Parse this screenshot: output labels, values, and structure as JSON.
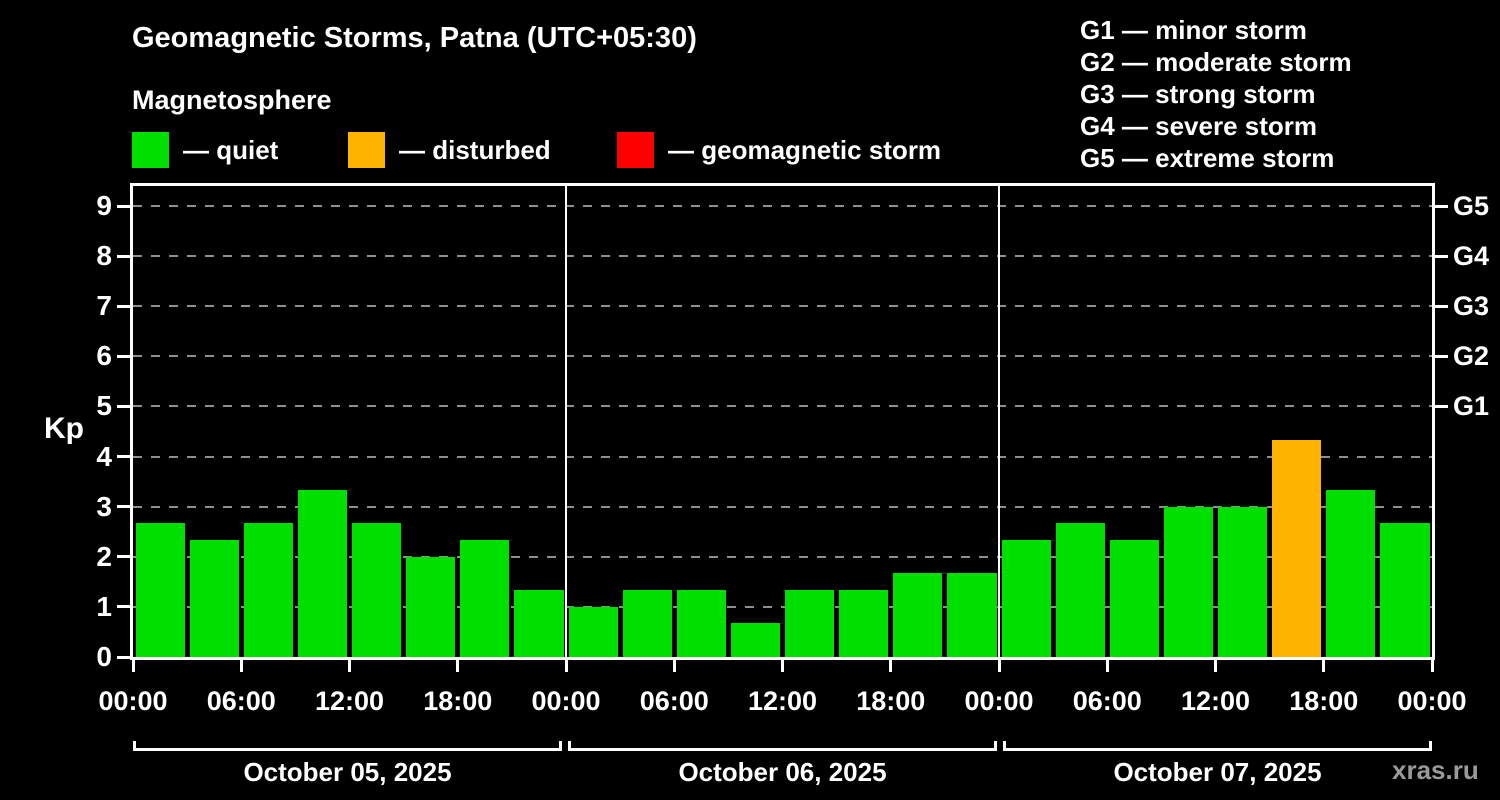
{
  "title": "Geomagnetic Storms, Patna (UTC+05:30)",
  "subtitle": "Magnetosphere",
  "watermark": "xras.ru",
  "status_legend": [
    {
      "name": "quiet",
      "label": "— quiet",
      "color": "#00e000"
    },
    {
      "name": "disturbed",
      "label": "— disturbed",
      "color": "#ffb200"
    },
    {
      "name": "storm",
      "label": "— geomagnetic storm",
      "color": "#ff0000"
    }
  ],
  "g_scale_legend": [
    {
      "label": "G1 — minor storm"
    },
    {
      "label": "G2 — moderate storm"
    },
    {
      "label": "G3 — strong storm"
    },
    {
      "label": "G4 — severe storm"
    },
    {
      "label": "G5 — extreme storm"
    }
  ],
  "chart_data": {
    "type": "bar",
    "title": "Geomagnetic Storms, Patna (UTC+05:30)",
    "ylabel": "Kp",
    "ylim": [
      0,
      9.4
    ],
    "y_ticks": [
      0,
      1,
      2,
      3,
      4,
      5,
      6,
      7,
      8,
      9
    ],
    "right_axis_ticks": [
      {
        "label": "G1",
        "kp": 5
      },
      {
        "label": "G2",
        "kp": 6
      },
      {
        "label": "G3",
        "kp": 7
      },
      {
        "label": "G4",
        "kp": 8
      },
      {
        "label": "G5",
        "kp": 9
      }
    ],
    "grid": "dashed horizontal lines at integer Kp values",
    "legend_position": "top",
    "x_hours_total": 72,
    "bar_interval_hours": 3,
    "x_tick_hours": [
      0,
      6,
      12,
      18,
      24,
      30,
      36,
      42,
      48,
      54,
      60,
      66,
      72
    ],
    "x_tick_labels": [
      "00:00",
      "06:00",
      "12:00",
      "18:00",
      "00:00",
      "06:00",
      "12:00",
      "18:00",
      "00:00",
      "06:00",
      "12:00",
      "18:00",
      "00:00"
    ],
    "day_separator_hours": [
      24,
      48
    ],
    "days": [
      {
        "label": "October 05, 2025"
      },
      {
        "label": "October 06, 2025"
      },
      {
        "label": "October 07, 2025"
      }
    ],
    "colors": {
      "quiet": "#00e000",
      "disturbed": "#ffb200",
      "storm": "#ff0000"
    },
    "series": [
      {
        "name": "Kp index",
        "values": [
          2.67,
          2.33,
          2.67,
          3.33,
          2.67,
          2.0,
          2.33,
          1.33,
          1.0,
          1.33,
          1.33,
          0.67,
          1.33,
          1.33,
          1.67,
          1.67,
          2.33,
          2.67,
          2.33,
          3.0,
          3.0,
          4.33,
          3.33,
          2.67
        ],
        "statuses": [
          "quiet",
          "quiet",
          "quiet",
          "quiet",
          "quiet",
          "quiet",
          "quiet",
          "quiet",
          "quiet",
          "quiet",
          "quiet",
          "quiet",
          "quiet",
          "quiet",
          "quiet",
          "quiet",
          "quiet",
          "quiet",
          "quiet",
          "quiet",
          "quiet",
          "disturbed",
          "quiet",
          "quiet"
        ]
      }
    ]
  }
}
